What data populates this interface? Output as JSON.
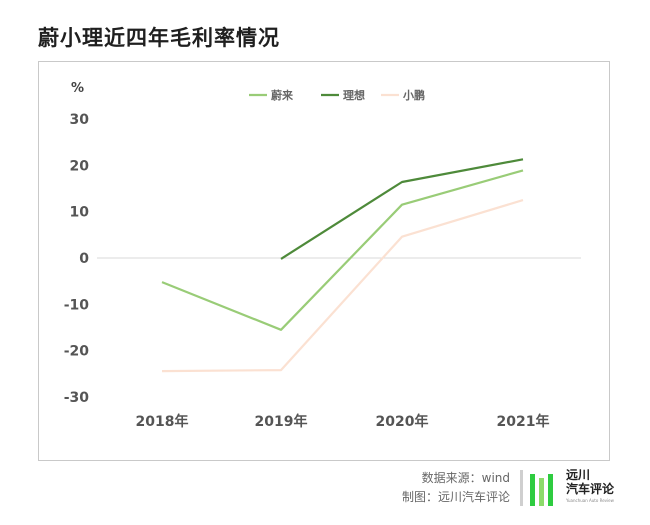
{
  "title": "蔚小理近四年毛利率情况",
  "footer": {
    "source": "数据来源：wind",
    "made_by": "制图：远川汽车评论"
  },
  "logo": {
    "name_line1": "远川",
    "name_line2": "汽车评论",
    "subtitle": "Yuanchuan Auto Review",
    "colors": [
      "#2ecc40",
      "#8ddb6a"
    ]
  },
  "chart_data": {
    "type": "line",
    "ylabel": "%",
    "ylim": [
      -30,
      30
    ],
    "yticks": [
      30,
      20,
      10,
      0,
      -10,
      -20,
      -30
    ],
    "categories": [
      "2018年",
      "2019年",
      "2020年",
      "2021年"
    ],
    "legend_position": "top-center",
    "grid": false,
    "series": [
      {
        "name": "蔚来",
        "color": "#99cc77",
        "values": [
          -5.2,
          -15.5,
          11.5,
          18.9
        ]
      },
      {
        "name": "理想",
        "color": "#4e8a3a",
        "values": [
          null,
          -0.2,
          16.4,
          21.3
        ]
      },
      {
        "name": "小鹏",
        "color": "#fbe1d2",
        "values": [
          -24.4,
          -24.2,
          4.6,
          12.5
        ]
      }
    ]
  }
}
